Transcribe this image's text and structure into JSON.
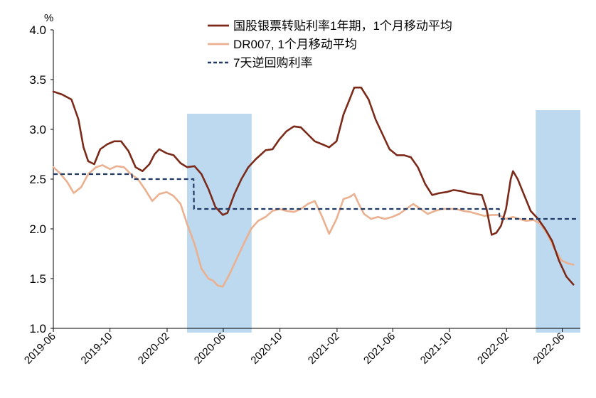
{
  "chart_data": {
    "type": "line",
    "title": "",
    "ylabel_unit": "%",
    "ylim": [
      1.0,
      4.0
    ],
    "yticks": [
      "4.0",
      "3.5",
      "3.0",
      "2.5",
      "2.0",
      "1.5",
      "1.0"
    ],
    "xlim": [
      "2019-06-01",
      "2022-07-10"
    ],
    "xticks": [
      "2019-06",
      "2019-10",
      "2020-02",
      "2020-06",
      "2020-10",
      "2021-02",
      "2021-06",
      "2021-10",
      "2022-02",
      "2022-06"
    ],
    "legend_position": "top",
    "shaded_periods": [
      {
        "start": "2020-03-15",
        "end": "2020-08-01"
      },
      {
        "start": "2022-04-05",
        "end": "2022-07-10"
      }
    ],
    "series": [
      {
        "name": "国股银票转贴利率1年期，1个月移动平均",
        "color": "#7b2a1a",
        "style": "solid",
        "points": [
          [
            "2019-06-01",
            3.38
          ],
          [
            "2019-06-20",
            3.35
          ],
          [
            "2019-07-10",
            3.3
          ],
          [
            "2019-07-25",
            3.1
          ],
          [
            "2019-08-05",
            2.82
          ],
          [
            "2019-08-15",
            2.68
          ],
          [
            "2019-08-28",
            2.65
          ],
          [
            "2019-09-10",
            2.8
          ],
          [
            "2019-09-25",
            2.85
          ],
          [
            "2019-10-10",
            2.88
          ],
          [
            "2019-10-25",
            2.88
          ],
          [
            "2019-11-10",
            2.78
          ],
          [
            "2019-11-25",
            2.62
          ],
          [
            "2019-12-10",
            2.58
          ],
          [
            "2019-12-25",
            2.65
          ],
          [
            "2020-01-05",
            2.75
          ],
          [
            "2020-01-15",
            2.8
          ],
          [
            "2020-01-31",
            2.76
          ],
          [
            "2020-02-15",
            2.74
          ],
          [
            "2020-03-01",
            2.66
          ],
          [
            "2020-03-15",
            2.62
          ],
          [
            "2020-03-31",
            2.63
          ],
          [
            "2020-04-15",
            2.55
          ],
          [
            "2020-04-30",
            2.4
          ],
          [
            "2020-05-15",
            2.22
          ],
          [
            "2020-05-31",
            2.14
          ],
          [
            "2020-06-10",
            2.16
          ],
          [
            "2020-06-25",
            2.35
          ],
          [
            "2020-07-10",
            2.5
          ],
          [
            "2020-07-25",
            2.62
          ],
          [
            "2020-08-10",
            2.7
          ],
          [
            "2020-08-31",
            2.79
          ],
          [
            "2020-09-15",
            2.8
          ],
          [
            "2020-09-30",
            2.9
          ],
          [
            "2020-10-15",
            2.98
          ],
          [
            "2020-10-31",
            3.03
          ],
          [
            "2020-11-15",
            3.02
          ],
          [
            "2020-11-30",
            2.95
          ],
          [
            "2020-12-15",
            2.88
          ],
          [
            "2020-12-31",
            2.85
          ],
          [
            "2021-01-15",
            2.82
          ],
          [
            "2021-01-31",
            2.88
          ],
          [
            "2021-02-15",
            3.15
          ],
          [
            "2021-02-28",
            3.3
          ],
          [
            "2021-03-10",
            3.42
          ],
          [
            "2021-03-25",
            3.42
          ],
          [
            "2021-04-10",
            3.3
          ],
          [
            "2021-04-25",
            3.1
          ],
          [
            "2021-05-10",
            2.95
          ],
          [
            "2021-05-25",
            2.8
          ],
          [
            "2021-06-10",
            2.74
          ],
          [
            "2021-06-25",
            2.74
          ],
          [
            "2021-07-10",
            2.72
          ],
          [
            "2021-07-25",
            2.62
          ],
          [
            "2021-08-10",
            2.45
          ],
          [
            "2021-08-25",
            2.34
          ],
          [
            "2021-09-10",
            2.36
          ],
          [
            "2021-09-25",
            2.37
          ],
          [
            "2021-10-10",
            2.39
          ],
          [
            "2021-10-25",
            2.38
          ],
          [
            "2021-11-10",
            2.36
          ],
          [
            "2021-11-25",
            2.35
          ],
          [
            "2021-12-10",
            2.34
          ],
          [
            "2021-12-20",
            2.2
          ],
          [
            "2021-12-31",
            1.94
          ],
          [
            "2022-01-10",
            1.96
          ],
          [
            "2022-01-20",
            2.03
          ],
          [
            "2022-01-31",
            2.2
          ],
          [
            "2022-02-10",
            2.5
          ],
          [
            "2022-02-15",
            2.58
          ],
          [
            "2022-02-25",
            2.5
          ],
          [
            "2022-03-10",
            2.35
          ],
          [
            "2022-03-25",
            2.18
          ],
          [
            "2022-04-10",
            2.1
          ],
          [
            "2022-04-25",
            2.0
          ],
          [
            "2022-05-10",
            1.88
          ],
          [
            "2022-05-25",
            1.68
          ],
          [
            "2022-06-10",
            1.52
          ],
          [
            "2022-06-25",
            1.44
          ]
        ]
      },
      {
        "name": "DR007, 1个月移动平均",
        "color": "#eab08f",
        "style": "solid",
        "points": [
          [
            "2019-06-01",
            2.62
          ],
          [
            "2019-06-15",
            2.56
          ],
          [
            "2019-07-01",
            2.47
          ],
          [
            "2019-07-15",
            2.36
          ],
          [
            "2019-07-31",
            2.42
          ],
          [
            "2019-08-15",
            2.55
          ],
          [
            "2019-09-01",
            2.62
          ],
          [
            "2019-09-15",
            2.64
          ],
          [
            "2019-10-01",
            2.6
          ],
          [
            "2019-10-15",
            2.63
          ],
          [
            "2019-10-31",
            2.62
          ],
          [
            "2019-11-15",
            2.55
          ],
          [
            "2019-11-30",
            2.5
          ],
          [
            "2019-12-15",
            2.4
          ],
          [
            "2019-12-31",
            2.28
          ],
          [
            "2020-01-15",
            2.35
          ],
          [
            "2020-01-31",
            2.37
          ],
          [
            "2020-02-15",
            2.33
          ],
          [
            "2020-03-01",
            2.25
          ],
          [
            "2020-03-15",
            2.05
          ],
          [
            "2020-03-31",
            1.85
          ],
          [
            "2020-04-15",
            1.6
          ],
          [
            "2020-04-30",
            1.5
          ],
          [
            "2020-05-10",
            1.48
          ],
          [
            "2020-05-20",
            1.43
          ],
          [
            "2020-05-31",
            1.42
          ],
          [
            "2020-06-15",
            1.55
          ],
          [
            "2020-06-30",
            1.7
          ],
          [
            "2020-07-15",
            1.85
          ],
          [
            "2020-07-31",
            2.0
          ],
          [
            "2020-08-15",
            2.08
          ],
          [
            "2020-08-31",
            2.12
          ],
          [
            "2020-09-15",
            2.18
          ],
          [
            "2020-09-30",
            2.2
          ],
          [
            "2020-10-15",
            2.18
          ],
          [
            "2020-10-31",
            2.17
          ],
          [
            "2020-11-15",
            2.2
          ],
          [
            "2020-11-30",
            2.25
          ],
          [
            "2020-12-15",
            2.28
          ],
          [
            "2020-12-31",
            2.12
          ],
          [
            "2021-01-15",
            1.95
          ],
          [
            "2021-01-31",
            2.1
          ],
          [
            "2021-02-15",
            2.3
          ],
          [
            "2021-02-28",
            2.32
          ],
          [
            "2021-03-10",
            2.35
          ],
          [
            "2021-03-20",
            2.25
          ],
          [
            "2021-03-31",
            2.15
          ],
          [
            "2021-04-15",
            2.1
          ],
          [
            "2021-04-30",
            2.12
          ],
          [
            "2021-05-15",
            2.1
          ],
          [
            "2021-05-31",
            2.12
          ],
          [
            "2021-06-15",
            2.15
          ],
          [
            "2021-06-30",
            2.2
          ],
          [
            "2021-07-15",
            2.25
          ],
          [
            "2021-07-31",
            2.2
          ],
          [
            "2021-08-15",
            2.15
          ],
          [
            "2021-08-31",
            2.18
          ],
          [
            "2021-09-15",
            2.2
          ],
          [
            "2021-09-30",
            2.2
          ],
          [
            "2021-10-15",
            2.2
          ],
          [
            "2021-10-31",
            2.18
          ],
          [
            "2021-11-15",
            2.17
          ],
          [
            "2021-11-30",
            2.15
          ],
          [
            "2021-12-15",
            2.13
          ],
          [
            "2021-12-31",
            2.14
          ],
          [
            "2022-01-15",
            2.14
          ],
          [
            "2022-01-31",
            2.1
          ],
          [
            "2022-02-15",
            2.12
          ],
          [
            "2022-02-28",
            2.1
          ],
          [
            "2022-03-15",
            2.08
          ],
          [
            "2022-03-31",
            2.09
          ],
          [
            "2022-04-15",
            2.05
          ],
          [
            "2022-04-30",
            1.95
          ],
          [
            "2022-05-15",
            1.8
          ],
          [
            "2022-05-31",
            1.68
          ],
          [
            "2022-06-15",
            1.65
          ],
          [
            "2022-06-25",
            1.64
          ]
        ]
      },
      {
        "name": "7天逆回购利率",
        "color": "#1f3864",
        "style": "dashed",
        "points": [
          [
            "2019-06-01",
            2.55
          ],
          [
            "2019-11-17",
            2.55
          ],
          [
            "2019-11-18",
            2.5
          ],
          [
            "2020-03-29",
            2.5
          ],
          [
            "2020-03-30",
            2.2
          ],
          [
            "2022-01-16",
            2.2
          ],
          [
            "2022-01-17",
            2.1
          ],
          [
            "2022-07-01",
            2.1
          ]
        ]
      }
    ]
  }
}
